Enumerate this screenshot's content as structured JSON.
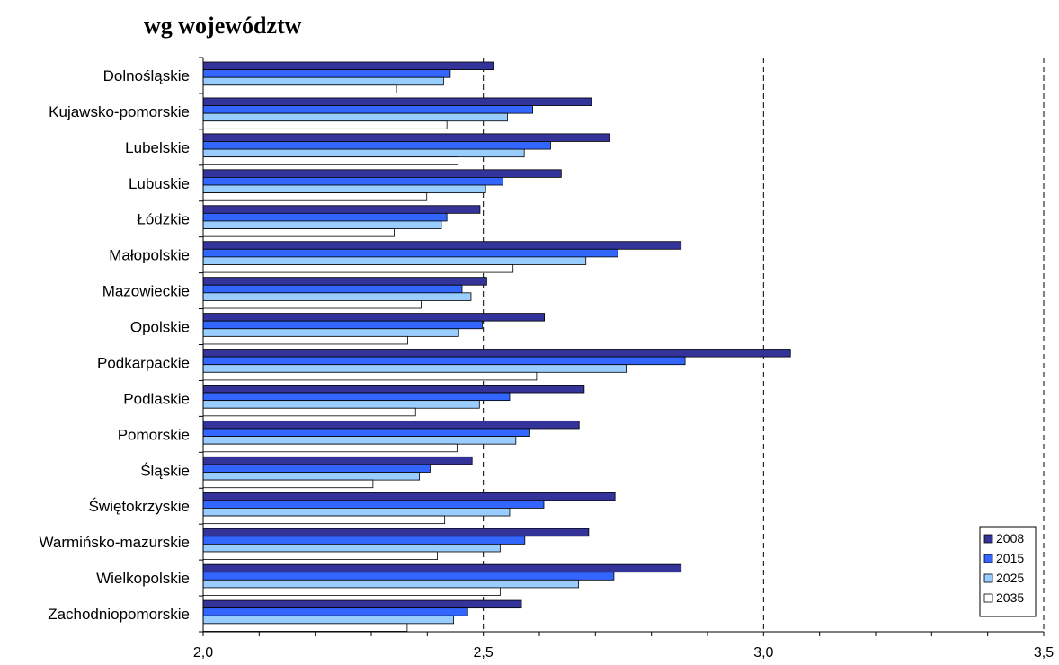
{
  "chart_data": {
    "type": "bar",
    "orientation": "horizontal",
    "title": "wg województw",
    "categories": [
      "Dolnośląskie",
      "Kujawsko-pomorskie",
      "Lubelskie",
      "Lubuskie",
      "Łódzkie",
      "Małopolskie",
      "Mazowieckie",
      "Opolskie",
      "Podkarpackie",
      "Podlaskie",
      "Pomorskie",
      "Śląskie",
      "Świętokrzyskie",
      "Warmińsko-mazurskie",
      "Wielkopolskie",
      "Zachodniopomorskie"
    ],
    "series": [
      {
        "name": "2008",
        "color": "#333399",
        "values": [
          2.518,
          2.693,
          2.725,
          2.639,
          2.494,
          2.853,
          2.506,
          2.609,
          3.048,
          2.68,
          2.671,
          2.48,
          2.735,
          2.688,
          2.853,
          2.568
        ]
      },
      {
        "name": "2015",
        "color": "#3366ff",
        "values": [
          2.441,
          2.588,
          2.62,
          2.535,
          2.435,
          2.74,
          2.462,
          2.498,
          2.86,
          2.547,
          2.583,
          2.405,
          2.608,
          2.574,
          2.733,
          2.472
        ]
      },
      {
        "name": "2025",
        "color": "#99ccff",
        "values": [
          2.429,
          2.543,
          2.573,
          2.504,
          2.425,
          2.683,
          2.478,
          2.456,
          2.755,
          2.493,
          2.558,
          2.386,
          2.547,
          2.53,
          2.67,
          2.447
        ]
      },
      {
        "name": "2035",
        "color": "#ffffff",
        "values": [
          2.345,
          2.435,
          2.455,
          2.399,
          2.341,
          2.553,
          2.389,
          2.365,
          2.595,
          2.379,
          2.453,
          2.303,
          2.431,
          2.418,
          2.53,
          2.364
        ]
      }
    ],
    "xlim": [
      2.0,
      3.5
    ],
    "xticks": [
      2.0,
      2.5,
      3.0,
      3.5
    ],
    "xtick_labels": [
      "2,0",
      "2,5",
      "3,0",
      "3,5"
    ],
    "minor_tick_step": 0.1,
    "gridlines": [
      2.5,
      3.0,
      3.5
    ],
    "grid_style": "dashed vertical",
    "legend_position": "right, lower"
  }
}
